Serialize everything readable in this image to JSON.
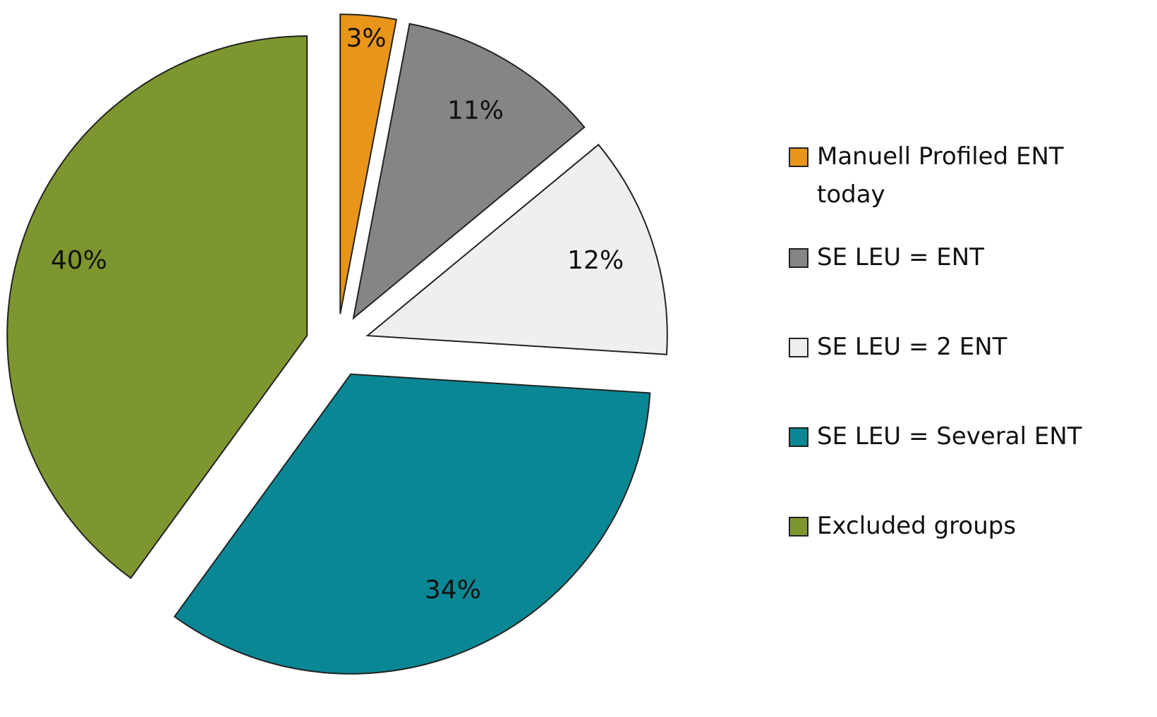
{
  "chart_data": {
    "type": "pie",
    "categories": [
      "Manuell Profiled ENT today",
      "SE LEU = ENT",
      "SE LEU = 2 ENT",
      "SE LEU = Several ENT",
      "Excluded groups"
    ],
    "values": [
      3,
      11,
      12,
      34,
      40
    ],
    "value_labels": [
      "3%",
      "11%",
      "12%",
      "34%",
      "40%"
    ],
    "colors": [
      "#e8951a",
      "#858585",
      "#efefef",
      "#0a8794",
      "#7e9630"
    ],
    "legend": "right"
  }
}
